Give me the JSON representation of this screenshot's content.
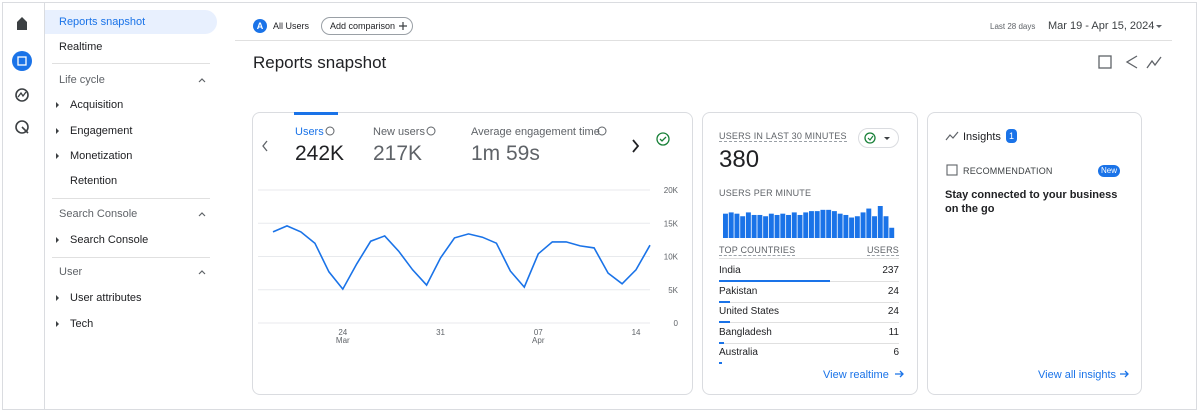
{
  "sidebar": {
    "top_items": [
      "Reports snapshot",
      "Realtime"
    ],
    "sections": [
      {
        "title": "Life cycle",
        "items": [
          "Acquisition",
          "Engagement",
          "Monetization",
          "Retention"
        ]
      },
      {
        "title": "Search Console",
        "items": [
          "Search Console"
        ]
      },
      {
        "title": "User",
        "items": [
          "User attributes",
          "Tech"
        ]
      }
    ]
  },
  "header": {
    "segment_badge": "A",
    "segment": "All Users",
    "add_comparison": "Add comparison",
    "date_range_label": "Last 28 days",
    "date_range": "Mar 19 - Apr 15, 2024"
  },
  "page_title": "Reports snapshot",
  "overview_card": {
    "metrics": [
      {
        "label": "Users",
        "value": "242K"
      },
      {
        "label": "New users",
        "value": "217K"
      },
      {
        "label": "Average engagement time",
        "value": "1m 59s"
      }
    ]
  },
  "realtime_card": {
    "title": "USERS IN LAST 30 MINUTES",
    "value": 380,
    "subtitle": "USERS PER MINUTE",
    "table": {
      "headers": [
        "TOP COUNTRIES",
        "USERS"
      ],
      "rows": [
        [
          "India",
          237
        ],
        [
          "Pakistan",
          24
        ],
        [
          "United States",
          24
        ],
        [
          "Bangladesh",
          11
        ],
        [
          "Australia",
          6
        ]
      ]
    },
    "link": "View realtime"
  },
  "insights_card": {
    "title": "Insights",
    "count": 1,
    "label": "RECOMMENDATION",
    "tag": "New",
    "text": "Stay connected to your business on the go",
    "link": "View all insights"
  },
  "chart_data": [
    {
      "type": "line",
      "color": "#1a73e8",
      "categories": [
        null,
        null,
        null,
        null,
        null,
        "24\nMar",
        null,
        null,
        null,
        null,
        null,
        null,
        "31",
        null,
        null,
        null,
        null,
        null,
        null,
        "07\nApr",
        null,
        null,
        null,
        null,
        null,
        null,
        "14",
        null
      ],
      "values": [
        13700,
        14600,
        13700,
        12000,
        7700,
        5100,
        8900,
        12300,
        13100,
        10800,
        8000,
        5700,
        9800,
        12800,
        13400,
        12900,
        12000,
        7800,
        5400,
        10400,
        12200,
        12200,
        11600,
        11300,
        7500,
        5900,
        8000,
        11700
      ],
      "ylim": [
        0,
        20000
      ],
      "yticks": [
        0,
        {
          "value": 5000,
          "label": "5K"
        },
        {
          "value": 10000,
          "label": "10K"
        },
        {
          "value": 15000,
          "label": "15K"
        },
        {
          "value": 20000,
          "label": "20K"
        }
      ],
      "grid": true
    },
    {
      "type": "bar",
      "color": "#1a73e8",
      "values": [
        19,
        20,
        19,
        17,
        20,
        18,
        18,
        17,
        19,
        18,
        19,
        18,
        20,
        18,
        20,
        21,
        21,
        22,
        22,
        21,
        19,
        18,
        16,
        17,
        20,
        23,
        17,
        25,
        17,
        8
      ]
    }
  ]
}
